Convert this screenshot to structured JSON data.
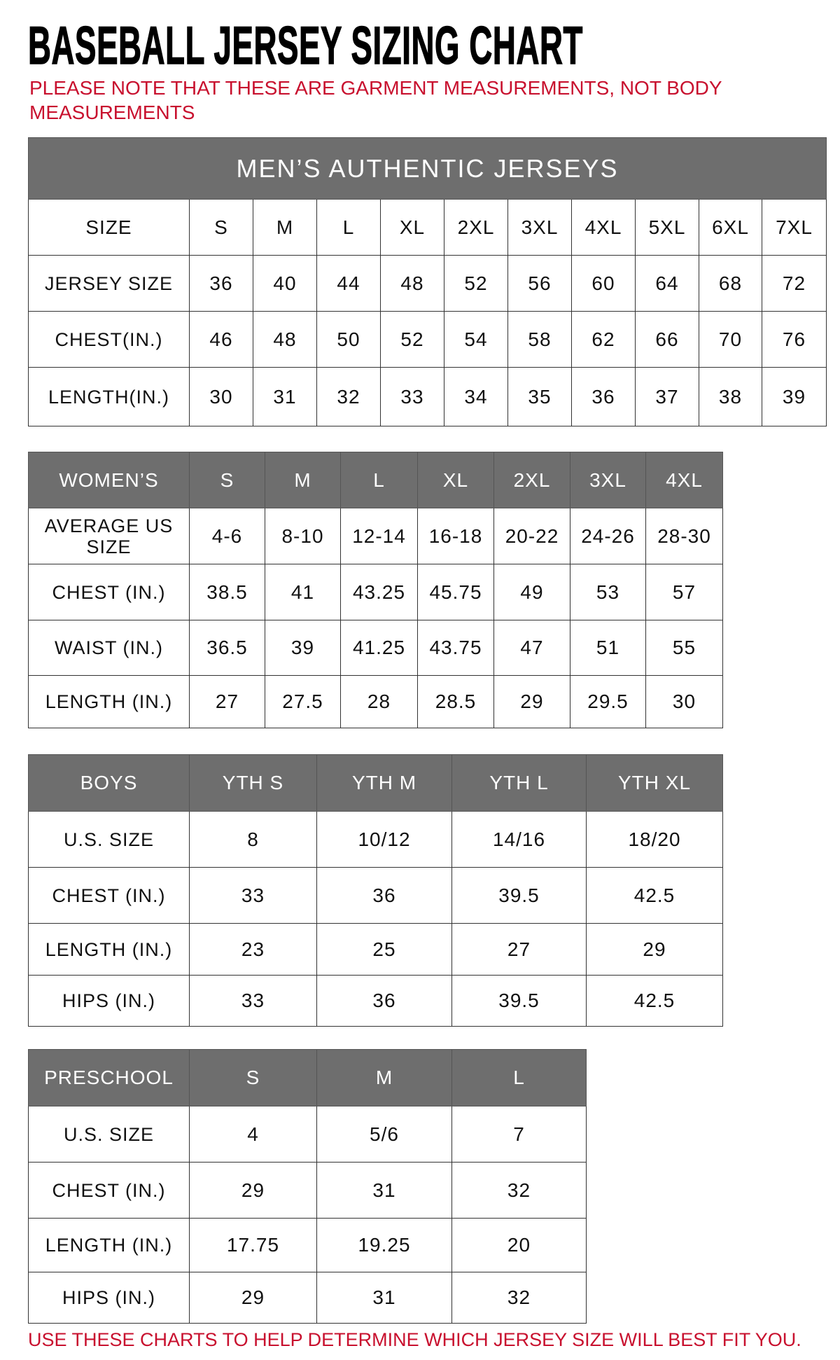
{
  "title": "BASEBALL JERSEY SIZING CHART",
  "note": "PLEASE NOTE THAT THESE ARE GARMENT MEASUREMENTS, NOT BODY MEASUREMENTS",
  "footer": "USE THESE CHARTS TO HELP DETERMINE WHICH JERSEY SIZE WILL BEST FIT YOU.",
  "colors": {
    "header_bg": "#6e6e6e",
    "accent_red": "#c8102e"
  },
  "tables": [
    {
      "id": "mens",
      "band": "MEN’S AUTHENTIC JERSEYS",
      "header_is_gray": false,
      "header": [
        "SIZE",
        "S",
        "M",
        "L",
        "XL",
        "2XL",
        "3XL",
        "4XL",
        "5XL",
        "6XL",
        "7XL"
      ],
      "rows": [
        [
          "JERSEY SIZE",
          "36",
          "40",
          "44",
          "48",
          "52",
          "56",
          "60",
          "64",
          "68",
          "72"
        ],
        [
          "CHEST(IN.)",
          "46",
          "48",
          "50",
          "52",
          "54",
          "58",
          "62",
          "66",
          "70",
          "76"
        ],
        [
          "LENGTH(IN.)",
          "30",
          "31",
          "32",
          "33",
          "34",
          "35",
          "36",
          "37",
          "38",
          "39"
        ]
      ]
    },
    {
      "id": "womens",
      "header_is_gray": true,
      "header": [
        "WOMEN’S",
        "S",
        "M",
        "L",
        "XL",
        "2XL",
        "3XL",
        "4XL"
      ],
      "rows": [
        [
          "AVERAGE US SIZE",
          "4-6",
          "8-10",
          "12-14",
          "16-18",
          "20-22",
          "24-26",
          "28-30"
        ],
        [
          "CHEST (IN.)",
          "38.5",
          "41",
          "43.25",
          "45.75",
          "49",
          "53",
          "57"
        ],
        [
          "WAIST (IN.)",
          "36.5",
          "39",
          "41.25",
          "43.75",
          "47",
          "51",
          "55"
        ],
        [
          "LENGTH (IN.)",
          "27",
          "27.5",
          "28",
          "28.5",
          "29",
          "29.5",
          "30"
        ]
      ]
    },
    {
      "id": "boys",
      "header_is_gray": true,
      "header": [
        "BOYS",
        "YTH S",
        "YTH M",
        "YTH L",
        "YTH XL"
      ],
      "rows": [
        [
          "U.S. SIZE",
          "8",
          "10/12",
          "14/16",
          "18/20"
        ],
        [
          "CHEST (IN.)",
          "33",
          "36",
          "39.5",
          "42.5"
        ],
        [
          "LENGTH (IN.)",
          "23",
          "25",
          "27",
          "29"
        ],
        [
          "HIPS (IN.)",
          "33",
          "36",
          "39.5",
          "42.5"
        ]
      ]
    },
    {
      "id": "preschool",
      "header_is_gray": true,
      "header": [
        "PRESCHOOL",
        "S",
        "M",
        "L"
      ],
      "rows": [
        [
          "U.S. SIZE",
          "4",
          "5/6",
          "7"
        ],
        [
          "CHEST (IN.)",
          "29",
          "31",
          "32"
        ],
        [
          "LENGTH (IN.)",
          "17.75",
          "19.25",
          "20"
        ],
        [
          "HIPS (IN.)",
          "29",
          "31",
          "32"
        ]
      ]
    }
  ]
}
